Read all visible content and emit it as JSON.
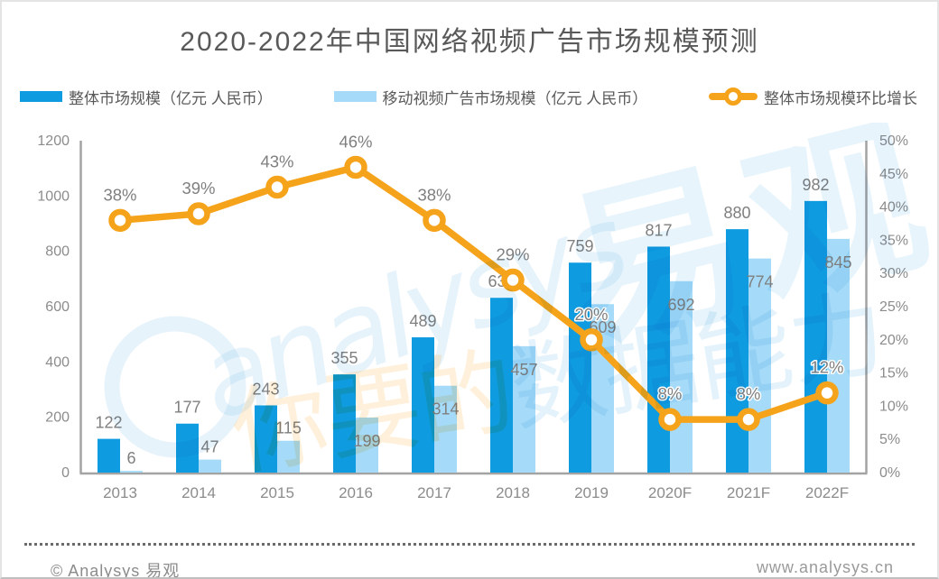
{
  "title": "2020-2022年中国网络视频广告市场规模预测",
  "legend": {
    "items": [
      {
        "label": "整体市场规模（亿元 人民币）",
        "type": "bar",
        "color": "#0f9bdf"
      },
      {
        "label": "移动视频广告市场规模（亿元 人民币）",
        "type": "bar",
        "color": "#a5dbf8"
      },
      {
        "label": "整体市场规模环比增长",
        "type": "line",
        "color": "#f6a31c"
      }
    ]
  },
  "chart_data": {
    "type": "bar",
    "title": "2020-2022年中国网络视频广告市场规模预测",
    "categories": [
      "2013",
      "2014",
      "2015",
      "2016",
      "2017",
      "2018",
      "2019",
      "2020F",
      "2021F",
      "2022F"
    ],
    "series": [
      {
        "name": "整体市场规模（亿元 人民币）",
        "type": "bar",
        "axis": "left",
        "color": "#0f9bdf",
        "values": [
          122,
          177,
          243,
          355,
          489,
          632,
          759,
          817,
          880,
          982
        ]
      },
      {
        "name": "移动视频广告市场规模（亿元 人民币）",
        "type": "bar",
        "axis": "left",
        "color": "#a5dbf8",
        "values": [
          6,
          47,
          115,
          199,
          314,
          457,
          609,
          692,
          774,
          845
        ]
      },
      {
        "name": "整体市场规模环比增长",
        "type": "line",
        "axis": "right",
        "color": "#f6a31c",
        "values": [
          38,
          39,
          43,
          46,
          38,
          29,
          20,
          8,
          8,
          12
        ],
        "labels": [
          "38%",
          "39%",
          "43%",
          "46%",
          "38%",
          "29%",
          "20%",
          "8%",
          "8%",
          "12%"
        ]
      }
    ],
    "left_axis": {
      "min": 0,
      "max": 1200,
      "tick_step": 200,
      "tick_labels": [
        "0",
        "200",
        "400",
        "600",
        "800",
        "1000",
        "1200"
      ]
    },
    "right_axis": {
      "min": 0,
      "max": 50,
      "tick_step": 5,
      "tick_labels": [
        "0%",
        "5%",
        "10%",
        "15%",
        "20%",
        "25%",
        "30%",
        "35%",
        "40%",
        "45%",
        "50%"
      ]
    },
    "grid": false,
    "legend_position": "top",
    "label_color": "#7f7f7f",
    "axis_color": "#a3a3a3",
    "tick_color": "#8c8c8c"
  },
  "watermark": {
    "script": "analysys",
    "brand": "易观",
    "slogan_orange": "你要的",
    "slogan_blue": "数据能力"
  },
  "footer": {
    "copyright": "© Analysys 易观",
    "website": "www.analysys.cn"
  }
}
